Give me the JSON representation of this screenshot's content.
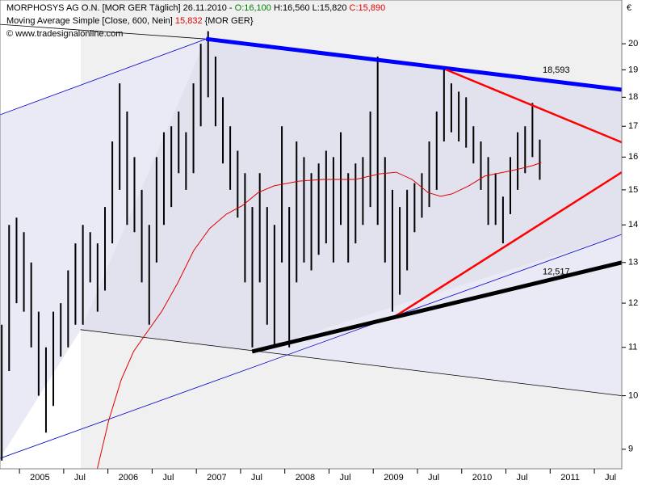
{
  "chart_data": {
    "type": "ohlc",
    "header": {
      "instrument": "MORPHOSYS AG O.N. [MOR GER  Täglich] 26.11.2010 - ",
      "open": "O:16,100",
      "high": " H:16,560",
      "low": " L:15,820",
      "close": " C:15,890",
      "source": "© www.tradesignalonline.com"
    },
    "y_label": "€",
    "log_scale": true,
    "xlim": [
      2004.78,
      2011.81
    ],
    "ylim": [
      8.66,
      21.8
    ],
    "yticks": [
      9,
      10,
      11,
      12,
      13,
      14,
      15,
      16,
      17,
      18,
      19,
      20
    ],
    "xticks": [
      2005,
      {
        "value": 2005.5,
        "label": "Jul"
      },
      2006,
      {
        "value": 2006.5,
        "label": "Jul"
      },
      2007,
      {
        "value": 2007.5,
        "label": "Jul"
      },
      2008,
      {
        "value": 2008.5,
        "label": "Jul"
      },
      2009,
      {
        "value": 2009.5,
        "label": "Jul"
      },
      2010,
      {
        "value": 2010.5,
        "label": "Jul"
      },
      2011,
      {
        "value": 2011.5,
        "label": "Jul"
      }
    ],
    "bar_color": "#000000",
    "x": [
      2004.8,
      2004.883,
      2004.967,
      2005.05,
      2005.133,
      2005.217,
      2005.3,
      2005.383,
      2005.467,
      2005.55,
      2005.633,
      2005.717,
      2005.8,
      2005.883,
      2005.967,
      2006.05,
      2006.133,
      2006.217,
      2006.3,
      2006.383,
      2006.467,
      2006.55,
      2006.633,
      2006.717,
      2006.8,
      2006.883,
      2006.967,
      2007.05,
      2007.133,
      2007.217,
      2007.3,
      2007.383,
      2007.467,
      2007.55,
      2007.633,
      2007.717,
      2007.8,
      2007.883,
      2007.967,
      2008.05,
      2008.133,
      2008.217,
      2008.3,
      2008.383,
      2008.467,
      2008.55,
      2008.633,
      2008.717,
      2008.8,
      2008.883,
      2008.967,
      2009.05,
      2009.133,
      2009.217,
      2009.3,
      2009.383,
      2009.467,
      2009.55,
      2009.633,
      2009.717,
      2009.8,
      2009.883,
      2009.967,
      2010.05,
      2010.133,
      2010.217,
      2010.3,
      2010.383,
      2010.467,
      2010.55,
      2010.633,
      2010.717,
      2010.8,
      2010.883
    ],
    "high": [
      11.5,
      14.0,
      14.2,
      13.8,
      13.0,
      11.8,
      11.0,
      11.8,
      12.0,
      12.8,
      13.5,
      14.0,
      13.8,
      13.5,
      14.5,
      16.5,
      18.5,
      17.5,
      16.0,
      15.0,
      14.0,
      16.0,
      16.8,
      17.0,
      17.5,
      16.8,
      18.5,
      20.0,
      20.5,
      19.5,
      18.0,
      17.0,
      16.2,
      15.5,
      14.5,
      15.5,
      14.5,
      14.0,
      17.0,
      14.5,
      16.5,
      16.0,
      15.5,
      15.8,
      16.2,
      16.0,
      16.8,
      15.5,
      15.8,
      16.0,
      17.5,
      19.5,
      16.0,
      15.0,
      14.5,
      15.0,
      15.2,
      15.5,
      16.5,
      17.5,
      19.0,
      18.5,
      18.2,
      18.0,
      17.0,
      16.5,
      16.0,
      15.5,
      14.8,
      16.0,
      16.8,
      17.0,
      17.8,
      16.56
    ],
    "low": [
      8.8,
      10.5,
      12.0,
      11.8,
      11.0,
      10.0,
      9.3,
      9.8,
      10.8,
      11.0,
      11.5,
      11.5,
      12.5,
      11.8,
      12.3,
      13.5,
      15.0,
      14.0,
      13.8,
      12.5,
      11.5,
      13.0,
      14.0,
      14.5,
      15.5,
      15.0,
      15.5,
      17.0,
      18.0,
      17.0,
      15.8,
      15.0,
      14.2,
      12.5,
      11.0,
      12.5,
      11.5,
      11.0,
      13.0,
      11.0,
      12.5,
      13.0,
      12.8,
      13.2,
      13.5,
      13.0,
      14.0,
      13.0,
      13.5,
      14.0,
      14.5,
      14.0,
      13.0,
      11.8,
      12.2,
      12.8,
      13.8,
      14.2,
      14.5,
      15.0,
      16.5,
      16.8,
      16.5,
      16.3,
      15.8,
      15.0,
      14.0,
      14.0,
      13.5,
      14.3,
      15.0,
      15.5,
      16.0,
      15.3
    ],
    "moving_average": {
      "name": "Moving Average Simple [Close, 600, Nein] ",
      "value_label": "15,832",
      "suffix": " {MOR GER}",
      "color": "#e00000",
      "x": [
        2005.88,
        2006.01,
        2006.15,
        2006.29,
        2006.42,
        2006.61,
        2006.79,
        2006.97,
        2007.15,
        2007.34,
        2007.52,
        2007.7,
        2007.88,
        2008.16,
        2008.43,
        2008.8,
        2009.07,
        2009.26,
        2009.44,
        2009.62,
        2009.76,
        2009.89,
        2010.08,
        2010.26,
        2010.44,
        2010.62,
        2010.81,
        2010.9
      ],
      "values": [
        8.66,
        9.53,
        10.32,
        10.91,
        11.27,
        11.81,
        12.49,
        13.31,
        13.9,
        14.3,
        14.54,
        14.92,
        15.12,
        15.26,
        15.31,
        15.31,
        15.48,
        15.53,
        15.31,
        14.92,
        14.81,
        14.88,
        15.12,
        15.41,
        15.51,
        15.61,
        15.74,
        15.832
      ]
    },
    "trendlines": [
      {
        "x": [
          2004.78,
          2007.11
        ],
        "y": [
          20.78,
          20.19
        ],
        "color": "#000000",
        "width": 0.8
      },
      {
        "x": [
          2005.69,
          2011.81
        ],
        "y": [
          11.39,
          10.0
        ],
        "color": "#000000",
        "width": 0.8
      },
      {
        "x": [
          2004.78,
          2007.11
        ],
        "y": [
          17.39,
          20.19
        ],
        "color": "#0000cc",
        "width": 0.8
      },
      {
        "x": [
          2004.78,
          2011.81
        ],
        "y": [
          8.84,
          13.74
        ],
        "color": "#0000cc",
        "width": 0.8
      },
      {
        "x": [
          2007.11,
          2011.81
        ],
        "y": [
          20.19,
          18.27
        ],
        "color": "#0000ff",
        "width": 5,
        "label": "18,593"
      },
      {
        "x": [
          2009.82,
          2011.81
        ],
        "y": [
          19.01,
          16.47
        ],
        "color": "#ff0000",
        "width": 2.5
      },
      {
        "x": [
          2009.23,
          2011.81
        ],
        "y": [
          11.67,
          15.53
        ],
        "color": "#ff0000",
        "width": 2.5
      },
      {
        "x": [
          2007.63,
          2011.81
        ],
        "y": [
          10.91,
          13.0
        ],
        "color": "#000000",
        "width": 5,
        "label": "12,517"
      }
    ]
  }
}
